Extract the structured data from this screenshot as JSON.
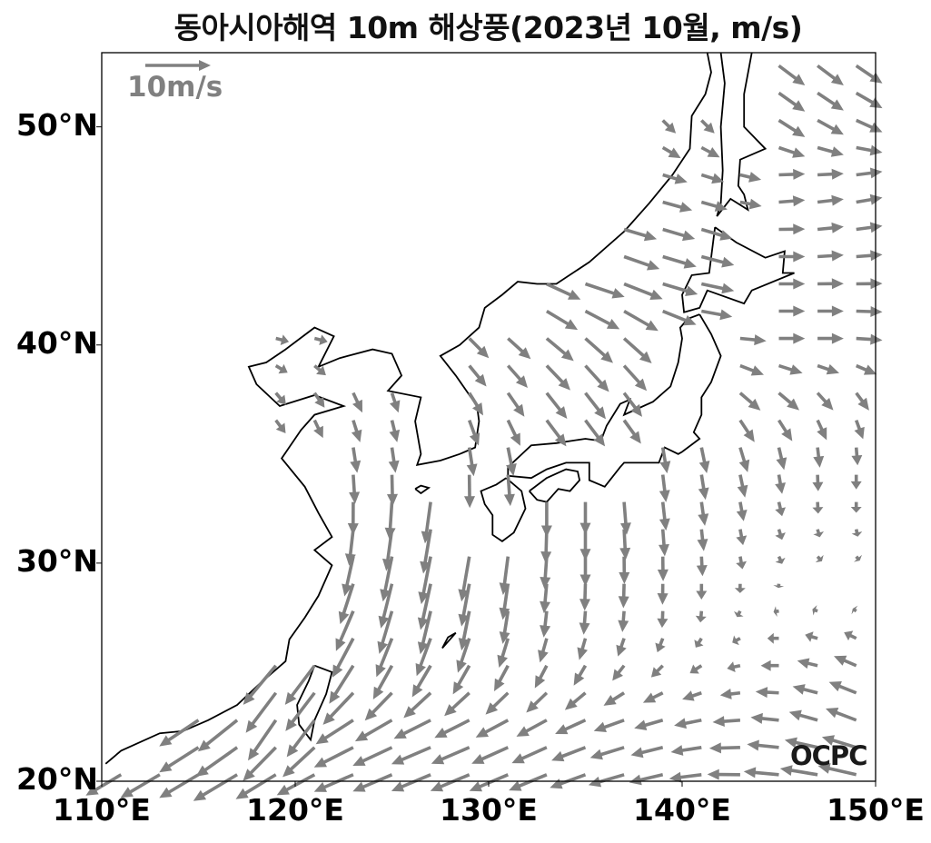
{
  "title": "동아시아해역 10m 해상풍(2023년 10월, m/s)",
  "reference_arrow": {
    "label": "10m/s",
    "speed": 10
  },
  "logo": "OCPC",
  "colors": {
    "arrow": "#808080",
    "coastline": "#000000",
    "frame": "#000000"
  },
  "axes": {
    "lon_range": [
      110,
      150
    ],
    "lat_range": [
      20,
      53.4
    ],
    "lon_ticks": [
      {
        "value": 110,
        "label": "110°E"
      },
      {
        "value": 120,
        "label": "120°E"
      },
      {
        "value": 130,
        "label": "130°E"
      },
      {
        "value": 140,
        "label": "140°E"
      },
      {
        "value": 150,
        "label": "150°E"
      }
    ],
    "lat_ticks": [
      {
        "value": 20,
        "label": "20°N"
      },
      {
        "value": 30,
        "label": "30°N"
      },
      {
        "value": 40,
        "label": "40°N"
      },
      {
        "value": 50,
        "label": "50°N"
      }
    ]
  },
  "wind_field": {
    "units": "m/s",
    "lons": [
      110,
      112.5,
      115,
      117.5,
      120,
      122.5,
      125,
      127.5,
      130,
      132.5,
      135,
      137.5,
      140,
      142.5,
      145,
      147.5,
      150
    ],
    "rows": [
      {
        "lat": 52.5,
        "uv": [
          null,
          null,
          null,
          null,
          null,
          null,
          null,
          null,
          null,
          null,
          null,
          null,
          null,
          null,
          [
            4,
            -3
          ],
          [
            4,
            -3
          ],
          [
            4,
            -2.5
          ]
        ]
      },
      {
        "lat": 50,
        "uv": [
          null,
          null,
          null,
          null,
          null,
          null,
          null,
          null,
          null,
          null,
          null,
          null,
          [
            2,
            -2
          ],
          null,
          [
            4,
            -2.5
          ],
          [
            4,
            -2
          ],
          [
            4,
            -1.5
          ]
        ]
      },
      {
        "lat": 47.5,
        "uv": [
          null,
          null,
          null,
          null,
          null,
          null,
          null,
          null,
          null,
          null,
          null,
          null,
          [
            4,
            -1
          ],
          [
            3,
            -1
          ],
          [
            4,
            0.5
          ],
          [
            4,
            0.5
          ],
          [
            4,
            1
          ]
        ]
      },
      {
        "lat": 45,
        "uv": [
          null,
          null,
          null,
          null,
          null,
          null,
          null,
          null,
          null,
          null,
          null,
          [
            5,
            -1.5
          ],
          [
            5,
            -1.5
          ],
          null,
          [
            4,
            0
          ],
          [
            4,
            0.5
          ],
          [
            4,
            0.5
          ]
        ]
      },
      {
        "lat": 42.5,
        "uv": [
          null,
          null,
          null,
          null,
          null,
          null,
          null,
          null,
          null,
          [
            5,
            -2.5
          ],
          [
            6,
            -2
          ],
          [
            6,
            -2.5
          ],
          [
            5,
            -1
          ],
          null,
          [
            4,
            0
          ],
          [
            4,
            0
          ],
          [
            4,
            0
          ]
        ]
      },
      {
        "lat": 40,
        "uv": [
          null,
          null,
          null,
          null,
          [
            2,
            -0.5
          ],
          null,
          null,
          null,
          [
            3,
            -3
          ],
          [
            4,
            -3.5
          ],
          [
            4,
            -4
          ],
          [
            4,
            -4
          ],
          null,
          [
            4,
            -0.5
          ],
          [
            4,
            0
          ],
          [
            4,
            0
          ],
          [
            4,
            -0.5
          ]
        ]
      },
      {
        "lat": 37.5,
        "uv": [
          null,
          null,
          null,
          null,
          [
            1.5,
            -2
          ],
          [
            1.5,
            -3
          ],
          [
            1,
            -3
          ],
          null,
          [
            2,
            -3.5
          ],
          [
            3,
            -4
          ],
          [
            3,
            -4
          ],
          [
            2.5,
            -3.5
          ],
          null,
          [
            3,
            -3
          ],
          [
            3,
            -3
          ],
          [
            2,
            -3
          ],
          [
            1.5,
            -3
          ]
        ]
      },
      {
        "lat": 35,
        "uv": [
          null,
          null,
          null,
          null,
          null,
          [
            0.5,
            -4
          ],
          [
            0.5,
            -4
          ],
          null,
          [
            0.5,
            -4.5
          ],
          null,
          null,
          null,
          [
            0.5,
            -4
          ],
          [
            1,
            -4
          ],
          [
            0.5,
            -3.5
          ],
          [
            0,
            -3
          ],
          [
            0,
            -2.5
          ]
        ]
      },
      {
        "lat": 32.5,
        "uv": [
          null,
          null,
          null,
          null,
          null,
          [
            0,
            -5
          ],
          [
            -0.5,
            -6
          ],
          [
            -1,
            -6.5
          ],
          null,
          [
            0,
            -5.5
          ],
          [
            0,
            -5
          ],
          [
            0.5,
            -5
          ],
          [
            0.5,
            -4
          ],
          [
            0.5,
            -3
          ],
          [
            0.5,
            -2
          ],
          [
            0,
            -1.5
          ],
          [
            0,
            -1.5
          ]
        ]
      },
      {
        "lat": 30,
        "uv": [
          null,
          null,
          null,
          null,
          null,
          [
            -1.5,
            -6
          ],
          [
            -1.5,
            -7
          ],
          [
            -1.5,
            -7.5
          ],
          [
            -1,
            -6.5
          ],
          [
            -0.5,
            -5
          ],
          [
            0,
            -4.5
          ],
          [
            0,
            -4
          ],
          [
            0,
            -3.5
          ],
          [
            0.3,
            -2
          ],
          [
            0.5,
            -1
          ],
          [
            0.8,
            -0.5
          ],
          [
            0.5,
            -0.5
          ]
        ]
      },
      {
        "lat": 27.5,
        "uv": [
          null,
          null,
          null,
          null,
          null,
          [
            -3,
            -6
          ],
          [
            -2,
            -6.5
          ],
          [
            -1.5,
            -6.5
          ],
          [
            -1,
            -5.5
          ],
          [
            -0.5,
            -4
          ],
          [
            -0.3,
            -3.5
          ],
          [
            -0.3,
            -3
          ],
          [
            0,
            -2
          ],
          [
            -0.5,
            -1
          ],
          [
            -1,
            0
          ],
          [
            -1,
            0.5
          ],
          [
            -0.5,
            0.5
          ]
        ]
      },
      {
        "lat": 25,
        "uv": [
          null,
          null,
          null,
          null,
          [
            -5,
            -6
          ],
          [
            -4,
            -6
          ],
          [
            -3,
            -5
          ],
          [
            -3,
            -4.5
          ],
          [
            -2.5,
            -4
          ],
          [
            -2,
            -3.5
          ],
          [
            -2,
            -3
          ],
          [
            -2,
            -2
          ],
          [
            -2,
            -1.5
          ],
          [
            -2,
            -0.5
          ],
          [
            -3,
            0
          ],
          [
            -3.5,
            1
          ],
          [
            -4,
            2
          ]
        ]
      },
      {
        "lat": 22.5,
        "uv": [
          null,
          null,
          [
            -6,
            -4
          ],
          [
            -6,
            -5
          ],
          [
            -3,
            -7
          ],
          [
            -6,
            -3.5
          ],
          [
            -6,
            -3
          ],
          [
            -6,
            -2.5
          ],
          [
            -5.5,
            -2.5
          ],
          [
            -5,
            -2.5
          ],
          [
            -5,
            -2
          ],
          [
            -5,
            -1.5
          ],
          [
            -4.5,
            -1
          ],
          [
            -4.5,
            -0.5
          ],
          [
            -4.5,
            0.5
          ],
          [
            -4.5,
            1.5
          ],
          [
            -5,
            2
          ]
        ]
      },
      {
        "lat": 20,
        "uv": [
          [
            -5,
            -3
          ],
          [
            -6,
            -3.5
          ],
          [
            -6,
            -3.5
          ],
          [
            -7,
            -4
          ],
          [
            -6,
            -3
          ],
          [
            -6,
            -2.5
          ],
          [
            -6,
            -2.5
          ],
          [
            -6,
            -2.5
          ],
          [
            -6,
            -2.5
          ],
          [
            -6,
            -2.5
          ],
          [
            -5.5,
            -2
          ],
          [
            -5.5,
            -1.5
          ],
          [
            -5,
            -1
          ],
          [
            -5,
            0
          ],
          [
            -5.5,
            0.5
          ],
          [
            -6,
            1
          ],
          [
            -6,
            1.5
          ]
        ]
      }
    ]
  }
}
